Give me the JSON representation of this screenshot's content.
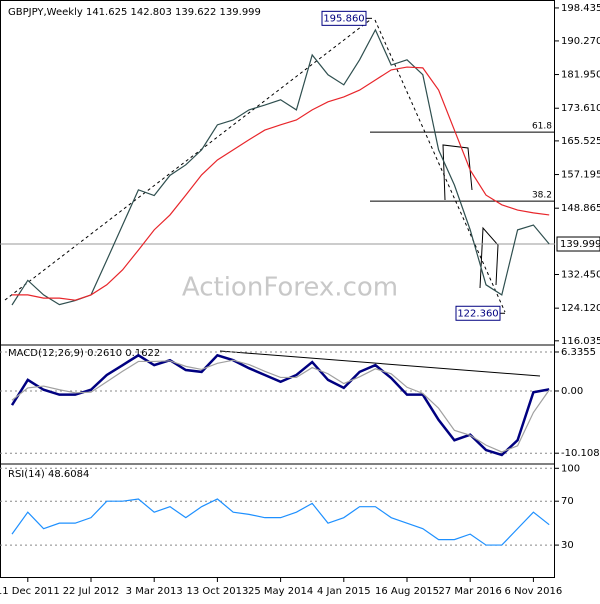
{
  "chart_data": [
    {
      "type": "line",
      "title": "GBPJPY,Weekly  141.625 142.803 139.622 139.999",
      "watermark": "ActionForex.com",
      "ylim": [
        115,
        200.4
      ],
      "yticks": [
        {
          "value": 198.435,
          "label": "198.435"
        },
        {
          "value": 190.27,
          "label": "190.270"
        },
        {
          "value": 181.95,
          "label": "181.950"
        },
        {
          "value": 173.61,
          "label": "173.610"
        },
        {
          "value": 165.525,
          "label": "165.525"
        },
        {
          "value": 157.195,
          "label": "157.195"
        },
        {
          "value": 148.865,
          "label": "148.865"
        },
        {
          "value": 132.45,
          "label": "132.450"
        },
        {
          "value": 124.12,
          "label": "124.120"
        },
        {
          "value": 116.035,
          "label": "116.035"
        }
      ],
      "grid": false,
      "last": {
        "value": 139.999,
        "label": "139.999"
      },
      "annotations": [
        {
          "value": 195.86,
          "label": "195.860"
        },
        {
          "value": 122.36,
          "label": "122.360"
        }
      ],
      "fib_levels": [
        {
          "value": 167.7,
          "label": "61.8"
        },
        {
          "value": 150.6,
          "label": "38.2"
        }
      ],
      "series": [
        {
          "name": "GBPJPY",
          "color": "#2f4f4f",
          "values": [
            124.9,
            131,
            127.4,
            125,
            126,
            127.4,
            136,
            144.7,
            153.4,
            152,
            157,
            159.6,
            163.3,
            169.5,
            170.7,
            173.2,
            174.4,
            175.7,
            173.2,
            186.8,
            181.9,
            179.4,
            185.6,
            193,
            184.3,
            185.6,
            181.9,
            163.3,
            154.6,
            143.5,
            129.9,
            127.4,
            143.5,
            144.7,
            139.999
          ]
        },
        {
          "name": "MA",
          "color": "#e8262b",
          "values": [
            127.4,
            127.4,
            126.6,
            126.6,
            126.1,
            127.4,
            129.9,
            133.6,
            138.5,
            143.5,
            147.2,
            152.1,
            157.1,
            160.8,
            163.3,
            165.8,
            168.2,
            169.5,
            170.7,
            173.2,
            175.2,
            176.4,
            178.1,
            180.6,
            183.1,
            183.8,
            183.6,
            178.1,
            168.2,
            158.3,
            152.1,
            149.7,
            148.4,
            147.7,
            147.2
          ]
        }
      ]
    },
    {
      "type": "line",
      "title": "MACD(12,26,9) 0.2610 0.1622",
      "ylim": [
        -11.7,
        7.47
      ],
      "yticks": [
        6.3355,
        {
          "value": 0,
          "label": "0.00"
        },
        -10.1082
      ],
      "grid": true,
      "series": [
        {
          "name": "MACD",
          "color": "#000080",
          "values": [
            -2.3,
            1.8,
            0.2,
            -0.6,
            -0.6,
            0.2,
            2.6,
            4.2,
            5.8,
            4.2,
            5,
            3.4,
            3.1,
            5.8,
            5,
            3.7,
            2.6,
            1.5,
            2.6,
            4.7,
            1.8,
            0.5,
            3.1,
            4.2,
            2.1,
            -0.6,
            -0.6,
            -4.7,
            -8,
            -7.1,
            -9.6,
            -10.4,
            -8,
            -0.2,
            0.261
          ]
        },
        {
          "name": "Signal",
          "color": "#a0a0a0",
          "values": [
            -1.5,
            0.5,
            0.8,
            0.2,
            -0.3,
            -0.2,
            1.5,
            3.2,
            4.8,
            4.8,
            4.9,
            4,
            3.5,
            4.5,
            5,
            4.3,
            3.2,
            2.2,
            2.2,
            3.8,
            2.8,
            1.2,
            2.3,
            3.6,
            2.8,
            0.6,
            -0.4,
            -2.8,
            -6.4,
            -7.2,
            -8.8,
            -9.9,
            -8.9,
            -3.5,
            0.1622
          ]
        }
      ]
    },
    {
      "type": "line",
      "title": "RSI(14) 48.6084",
      "ylim": [
        0,
        103
      ],
      "yticks": [
        100,
        70,
        30
      ],
      "grid": true,
      "categories": [
        null,
        "11 Dec 2011",
        null,
        null,
        null,
        "22 Jul 2012",
        null,
        null,
        null,
        "3 Mar 2013",
        null,
        null,
        null,
        "13 Oct 2013",
        null,
        null,
        null,
        "25 May 2014",
        null,
        null,
        null,
        "4 Jan 2015",
        null,
        null,
        null,
        "16 Aug 2015",
        null,
        null,
        null,
        "27 Mar 2016",
        null,
        null,
        null,
        "6 Nov 2016",
        null
      ],
      "series": [
        {
          "name": "RSI",
          "color": "#1e90ff",
          "values": [
            40,
            60,
            45,
            50,
            50,
            55,
            70,
            70,
            72,
            60,
            65,
            55,
            65,
            72,
            60,
            58,
            55,
            55,
            60,
            68,
            50,
            55,
            65,
            65,
            55,
            50,
            45,
            35,
            35,
            40,
            30,
            30,
            45,
            60,
            48.6084
          ]
        }
      ]
    }
  ]
}
